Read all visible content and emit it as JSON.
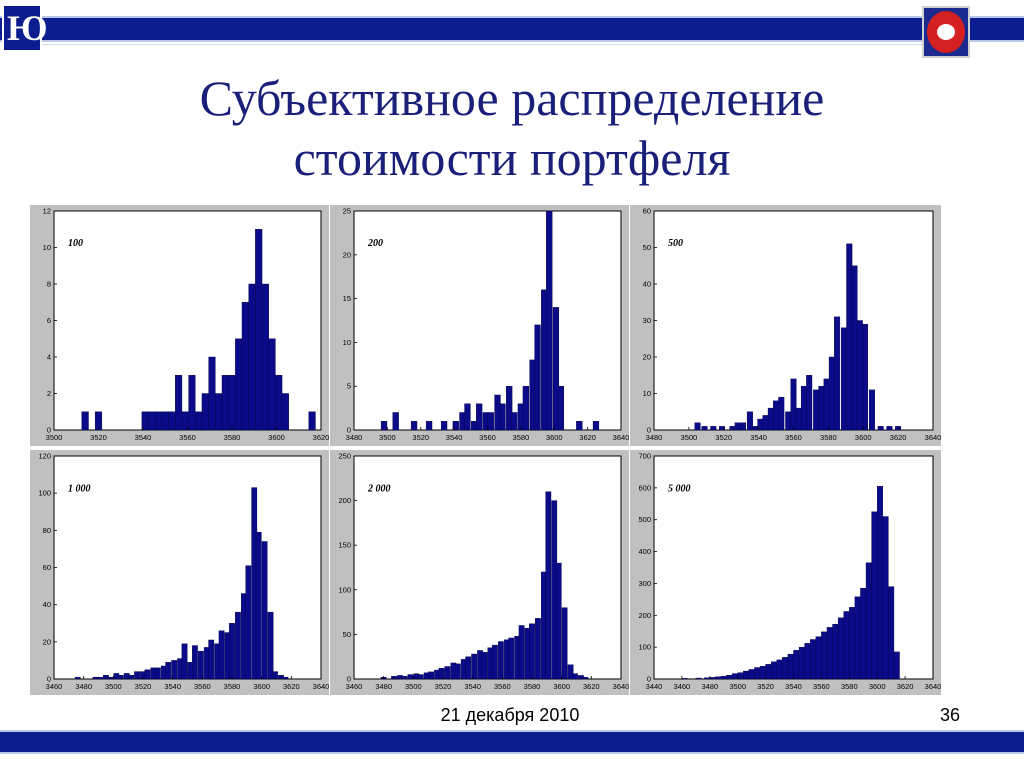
{
  "slide": {
    "title_line1": "Субъективное распределение",
    "title_line2": "стоимости портфеля",
    "date": "21 декабря 2010",
    "page_number": "36",
    "colors": {
      "bar": "#0b0b8a",
      "band": "#0b1d8f",
      "title": "#1a1f7a",
      "panel_bg": "#c0c0c0"
    }
  },
  "chart_data": [
    {
      "type": "bar",
      "annotation": "100",
      "xlim": [
        3500,
        3620
      ],
      "ylim": [
        0,
        12
      ],
      "xticks": [
        3500,
        3520,
        3540,
        3560,
        3580,
        3600,
        3620
      ],
      "yticks": [
        0,
        2,
        4,
        6,
        8,
        10,
        12
      ],
      "bin_width": 3,
      "x": [
        3514,
        3520,
        3541,
        3544,
        3547,
        3550,
        3553,
        3556,
        3559,
        3562,
        3565,
        3568,
        3571,
        3574,
        3577,
        3580,
        3583,
        3586,
        3589,
        3592,
        3595,
        3598,
        3601,
        3604,
        3616
      ],
      "values": [
        1,
        1,
        1,
        1,
        1,
        1,
        1,
        3,
        1,
        3,
        1,
        2,
        4,
        2,
        3,
        3,
        5,
        7,
        8,
        11,
        8,
        5,
        3,
        2,
        1
      ]
    },
    {
      "type": "bar",
      "annotation": "200",
      "xlim": [
        3480,
        3640
      ],
      "ylim": [
        0,
        25
      ],
      "xticks": [
        3480,
        3500,
        3520,
        3540,
        3560,
        3580,
        3600,
        3620,
        3640
      ],
      "yticks": [
        0,
        5,
        10,
        15,
        20,
        25
      ],
      "bin_width": 3.5,
      "x": [
        3498,
        3505,
        3516,
        3525,
        3534,
        3541,
        3545,
        3548,
        3552,
        3555,
        3559,
        3562,
        3566,
        3569,
        3573,
        3576,
        3580,
        3583,
        3587,
        3590,
        3594,
        3597,
        3601,
        3604,
        3615,
        3625
      ],
      "values": [
        1,
        2,
        1,
        1,
        1,
        1,
        2,
        3,
        1,
        3,
        2,
        2,
        4,
        3,
        5,
        2,
        3,
        5,
        8,
        12,
        16,
        25,
        14,
        5,
        1,
        1
      ]
    },
    {
      "type": "bar",
      "annotation": "500",
      "xlim": [
        3480,
        3640
      ],
      "ylim": [
        0,
        60
      ],
      "xticks": [
        3480,
        3500,
        3520,
        3540,
        3560,
        3580,
        3600,
        3620,
        3640
      ],
      "yticks": [
        0,
        10,
        20,
        30,
        40,
        50,
        60
      ],
      "bin_width": 3.2,
      "x": [
        3505,
        3509,
        3514,
        3519,
        3525,
        3528,
        3531,
        3535,
        3538,
        3541,
        3544,
        3547,
        3550,
        3553,
        3557,
        3560,
        3563,
        3566,
        3569,
        3573,
        3576,
        3579,
        3582,
        3585,
        3589,
        3592,
        3595,
        3598,
        3601,
        3605,
        3610,
        3615,
        3620
      ],
      "values": [
        2,
        1,
        1,
        1,
        1,
        2,
        2,
        5,
        1,
        3,
        4,
        6,
        8,
        9,
        5,
        14,
        6,
        12,
        15,
        11,
        12,
        14,
        20,
        31,
        28,
        51,
        45,
        30,
        29,
        11,
        1,
        1,
        1
      ]
    },
    {
      "type": "bar",
      "annotation": "1 000",
      "xlim": [
        3460,
        3640
      ],
      "ylim": [
        0,
        120
      ],
      "xticks": [
        3460,
        3480,
        3500,
        3520,
        3540,
        3560,
        3580,
        3600,
        3620,
        3640
      ],
      "yticks": [
        0,
        20,
        40,
        60,
        80,
        100,
        120
      ],
      "bin_width": 3.6,
      "x": [
        3476,
        3488,
        3491,
        3495,
        3498,
        3502,
        3505,
        3509,
        3512,
        3516,
        3520,
        3523,
        3527,
        3530,
        3534,
        3537,
        3541,
        3545,
        3548,
        3552,
        3555,
        3559,
        3563,
        3566,
        3570,
        3573,
        3577,
        3580,
        3584,
        3588,
        3591,
        3595,
        3598,
        3602,
        3606,
        3609,
        3613,
        3616
      ],
      "values": [
        1,
        1,
        1,
        2,
        1,
        3,
        2,
        3,
        2,
        4,
        4,
        5,
        6,
        6,
        7,
        9,
        10,
        11,
        19,
        9,
        18,
        15,
        17,
        21,
        19,
        26,
        25,
        30,
        36,
        46,
        61,
        103,
        79,
        74,
        36,
        4,
        2,
        1
      ]
    },
    {
      "type": "bar",
      "annotation": "2 000",
      "xlim": [
        3460,
        3640
      ],
      "ylim": [
        0,
        250
      ],
      "xticks": [
        3460,
        3480,
        3500,
        3520,
        3540,
        3560,
        3580,
        3600,
        3620,
        3640
      ],
      "yticks": [
        0,
        50,
        100,
        150,
        200,
        250
      ],
      "bin_width": 3.6,
      "x": [
        3480,
        3487,
        3491,
        3494,
        3498,
        3502,
        3505,
        3509,
        3512,
        3516,
        3519,
        3523,
        3527,
        3530,
        3534,
        3537,
        3541,
        3545,
        3548,
        3552,
        3555,
        3559,
        3563,
        3566,
        3570,
        3573,
        3577,
        3580,
        3584,
        3588,
        3591,
        3595,
        3598,
        3602,
        3606,
        3609,
        3613,
        3616
      ],
      "values": [
        2,
        3,
        4,
        3,
        5,
        6,
        5,
        7,
        8,
        10,
        12,
        14,
        18,
        17,
        22,
        25,
        28,
        32,
        30,
        35,
        38,
        42,
        44,
        46,
        48,
        60,
        57,
        62,
        68,
        120,
        210,
        200,
        130,
        80,
        16,
        6,
        4,
        2
      ]
    },
    {
      "type": "bar",
      "annotation": "5 000",
      "xlim": [
        3440,
        3640
      ],
      "ylim": [
        0,
        700
      ],
      "xticks": [
        3440,
        3460,
        3480,
        3500,
        3520,
        3540,
        3560,
        3580,
        3600,
        3620,
        3640
      ],
      "yticks": [
        0,
        100,
        200,
        300,
        400,
        500,
        600,
        700
      ],
      "bin_width": 4,
      "x": [
        3462,
        3472,
        3478,
        3482,
        3486,
        3490,
        3494,
        3498,
        3502,
        3506,
        3510,
        3514,
        3518,
        3522,
        3526,
        3530,
        3534,
        3538,
        3542,
        3546,
        3550,
        3554,
        3558,
        3562,
        3566,
        3570,
        3574,
        3578,
        3582,
        3586,
        3590,
        3594,
        3598,
        3602,
        3606,
        3610,
        3614
      ],
      "values": [
        2,
        3,
        4,
        5,
        7,
        9,
        12,
        17,
        20,
        25,
        30,
        36,
        40,
        46,
        54,
        60,
        68,
        78,
        90,
        100,
        112,
        124,
        133,
        148,
        162,
        172,
        192,
        212,
        225,
        258,
        285,
        365,
        525,
        605,
        510,
        290,
        85
      ]
    }
  ]
}
